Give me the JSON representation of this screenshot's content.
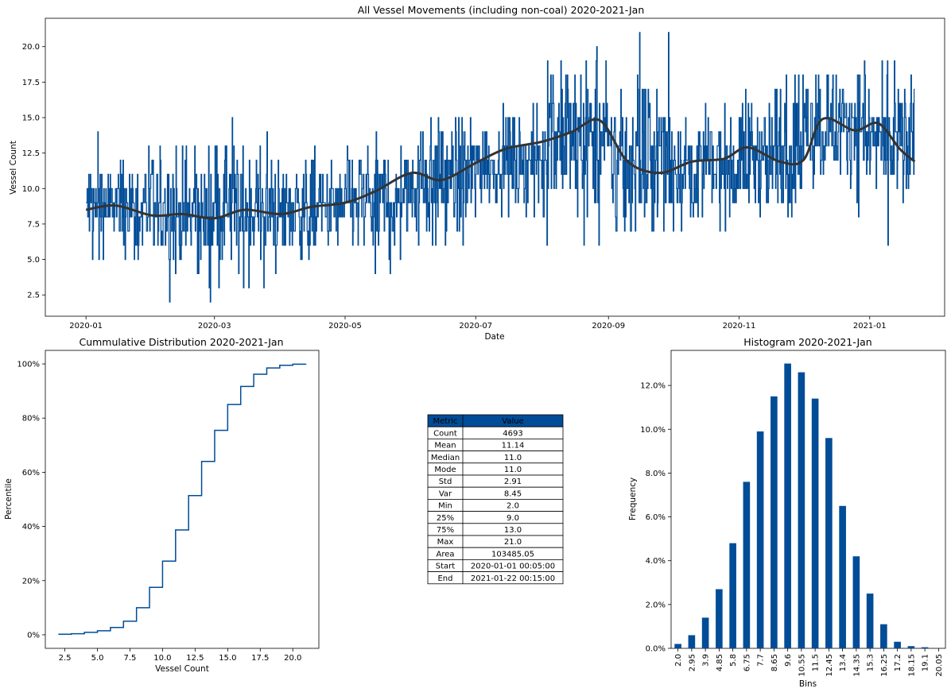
{
  "chart_data": [
    {
      "type": "line",
      "title": "All Vessel Movements (including non-coal) 2020-2021-Jan",
      "xlabel": "Date",
      "ylabel": "Vessel Count",
      "x_ticks": [
        "2020-01",
        "2020-03",
        "2020-05",
        "2020-07",
        "2020-09",
        "2020-11",
        "2021-01"
      ],
      "y_ticks": [
        "2.5",
        "5.0",
        "7.5",
        "10.0",
        "12.5",
        "15.0",
        "17.5",
        "20.0"
      ],
      "ylim": [
        1.0,
        22.0
      ],
      "xlim": [
        "2019-12-13",
        "2021-02-05"
      ],
      "grid": false,
      "series": [
        {
          "color": "#004c97",
          "envelope_monthly": [
            {
              "month": "2020-01",
              "low": 5,
              "high": 14,
              "mean": 8.7
            },
            {
              "month": "2020-02",
              "low": 2,
              "high": 13,
              "mean": 8.2
            },
            {
              "month": "2020-03",
              "low": 3,
              "high": 15,
              "mean": 8.5
            },
            {
              "month": "2020-04",
              "low": 4,
              "high": 13,
              "mean": 8.5
            },
            {
              "month": "2020-05",
              "low": 4,
              "high": 14,
              "mean": 9.2
            },
            {
              "month": "2020-06",
              "low": 2,
              "high": 15,
              "mean": 10.7
            },
            {
              "month": "2020-07",
              "low": 8,
              "high": 16,
              "mean": 11.8
            },
            {
              "month": "2020-08",
              "low": 6,
              "high": 20,
              "mean": 13.5
            },
            {
              "month": "2020-09",
              "low": 7,
              "high": 21,
              "mean": 12.0
            },
            {
              "month": "2020-10",
              "low": 7,
              "high": 16,
              "mean": 11.5
            },
            {
              "month": "2020-11",
              "low": 7,
              "high": 18,
              "mean": 12.3
            },
            {
              "month": "2020-12",
              "low": 8,
              "high": 19,
              "mean": 14.6
            },
            {
              "month": "2021-01",
              "low": 6,
              "high": 19,
              "mean": 13.0
            }
          ]
        },
        {
          "color": "#333333",
          "smoothed": [
            [
              "2020-01-01",
              8.5
            ],
            [
              "2020-01-15",
              8.8
            ],
            [
              "2020-02-01",
              8.1
            ],
            [
              "2020-02-15",
              8.2
            ],
            [
              "2020-03-01",
              7.9
            ],
            [
              "2020-03-15",
              8.5
            ],
            [
              "2020-04-01",
              8.2
            ],
            [
              "2020-04-15",
              8.7
            ],
            [
              "2020-05-01",
              9.0
            ],
            [
              "2020-05-15",
              9.8
            ],
            [
              "2020-06-01",
              11.1
            ],
            [
              "2020-06-15",
              10.6
            ],
            [
              "2020-07-01",
              11.8
            ],
            [
              "2020-07-15",
              12.8
            ],
            [
              "2020-08-01",
              13.3
            ],
            [
              "2020-08-15",
              14.0
            ],
            [
              "2020-08-28",
              14.8
            ],
            [
              "2020-09-10",
              11.9
            ],
            [
              "2020-09-25",
              11.1
            ],
            [
              "2020-10-10",
              11.9
            ],
            [
              "2020-10-25",
              12.1
            ],
            [
              "2020-11-05",
              12.9
            ],
            [
              "2020-11-20",
              11.9
            ],
            [
              "2020-12-01",
              12.0
            ],
            [
              "2020-12-10",
              14.9
            ],
            [
              "2020-12-25",
              14.1
            ],
            [
              "2021-01-05",
              14.6
            ],
            [
              "2021-01-15",
              12.8
            ],
            [
              "2021-01-22",
              11.9
            ]
          ]
        }
      ]
    },
    {
      "type": "line",
      "title": "Cummulative Distribution 2020-2021-Jan",
      "xlabel": "Vessel Count",
      "ylabel": "Percentile",
      "x_ticks": [
        "2.5",
        "5.0",
        "7.5",
        "10.0",
        "12.5",
        "15.0",
        "17.5",
        "20.0"
      ],
      "y_ticks": [
        "0%",
        "20%",
        "40%",
        "60%",
        "80%",
        "100%"
      ],
      "xlim": [
        1.0,
        22.0
      ],
      "ylim": [
        -0.05,
        1.05
      ],
      "series": [
        {
          "color": "#004c97",
          "step": true,
          "x": [
            2,
            3,
            4,
            5,
            6,
            7,
            8,
            9,
            10,
            11,
            12,
            13,
            14,
            15,
            16,
            17,
            18,
            19,
            20,
            21
          ],
          "y": [
            0.002,
            0.004,
            0.009,
            0.015,
            0.027,
            0.05,
            0.1,
            0.175,
            0.272,
            0.387,
            0.514,
            0.64,
            0.755,
            0.85,
            0.917,
            0.962,
            0.985,
            0.995,
            0.999,
            1.0
          ]
        }
      ]
    },
    {
      "type": "table",
      "columns": [
        "Metric",
        "Value"
      ],
      "header_color": "#004c97",
      "rows": [
        [
          "Count",
          "4693"
        ],
        [
          "Mean",
          "11.14"
        ],
        [
          "Median",
          "11.0"
        ],
        [
          "Mode",
          "11.0"
        ],
        [
          "Std",
          "2.91"
        ],
        [
          "Var",
          "8.45"
        ],
        [
          "Min",
          "2.0"
        ],
        [
          "25%",
          "9.0"
        ],
        [
          "75%",
          "13.0"
        ],
        [
          "Max",
          "21.0"
        ],
        [
          "Area",
          "103485.05"
        ],
        [
          "Start",
          "2020-01-01 00:05:00"
        ],
        [
          "End",
          "2021-01-22 00:15:00"
        ]
      ]
    },
    {
      "type": "bar",
      "title": "Histogram 2020-2021-Jan",
      "xlabel": "Bins",
      "ylabel": "Frequency",
      "categories": [
        "2.0",
        "2.95",
        "3.9",
        "4.85",
        "5.8",
        "6.75",
        "7.7",
        "8.65",
        "9.6",
        "10.55",
        "11.5",
        "12.45",
        "13.4",
        "14.35",
        "15.3",
        "16.25",
        "17.2",
        "18.15",
        "19.1",
        "20.05"
      ],
      "values": [
        0.002,
        0.006,
        0.014,
        0.027,
        0.048,
        0.076,
        0.099,
        0.115,
        0.13,
        0.126,
        0.114,
        0.096,
        0.065,
        0.042,
        0.025,
        0.011,
        0.003,
        0.001,
        0.0005,
        0.0
      ],
      "y_ticks": [
        "0.0%",
        "2.0%",
        "4.0%",
        "6.0%",
        "8.0%",
        "10.0%",
        "12.0%"
      ],
      "ylim": [
        0,
        0.136
      ],
      "color": "#004c97"
    }
  ]
}
